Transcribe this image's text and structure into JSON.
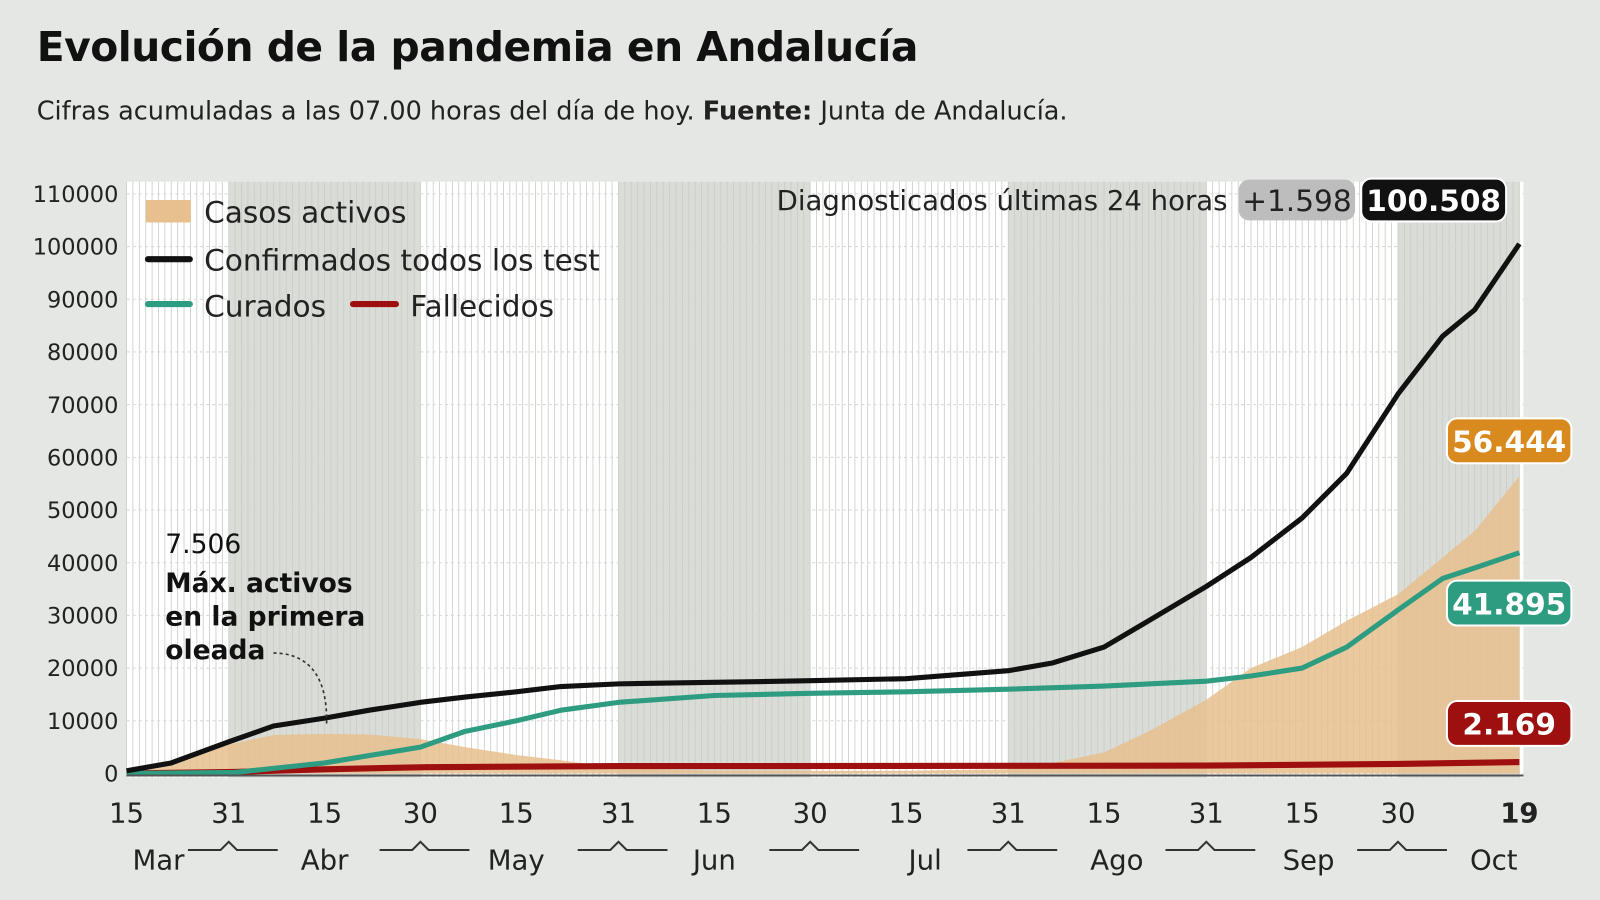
{
  "title": "Evolución de la pandemia en Andalucía",
  "subtitle": {
    "text": "Cifras acumuladas a las 07.00 horas del día de hoy.",
    "source_label": "Fuente:",
    "source": "Junta de Andalucía."
  },
  "header_box": {
    "label": "Diagnosticados últimas 24 horas",
    "delta": "+1.598",
    "total": "100.508"
  },
  "annotation": {
    "value": "7.506",
    "lines": [
      "Máx. activos",
      "en la primera",
      "oleada"
    ]
  },
  "end_labels": {
    "activos": "56.444",
    "curados": "41.895",
    "fallecidos": "2.169"
  },
  "colors": {
    "activos": "#e8c08e",
    "confirmados": "#111111",
    "curados": "#2e9c80",
    "fallecidos": "#9e0f0f",
    "activos_badge": "#d98a1f",
    "background": "#e4e7e3"
  },
  "chart_data": {
    "type": "line",
    "xlim": [
      "2020-03-15",
      "2020-10-19"
    ],
    "ylim": [
      0,
      110000
    ],
    "grid": true,
    "legend": "top-left",
    "y_ticks": [
      "0",
      "10000",
      "20000",
      "30000",
      "40000",
      "50000",
      "60000",
      "70000",
      "80000",
      "90000",
      "100000",
      "110000"
    ],
    "x_ticks": [
      {
        "date": "2020-03-15",
        "label": "15"
      },
      {
        "date": "2020-03-31",
        "label": "31"
      },
      {
        "date": "2020-04-15",
        "label": "15"
      },
      {
        "date": "2020-04-30",
        "label": "30"
      },
      {
        "date": "2020-05-15",
        "label": "15"
      },
      {
        "date": "2020-05-31",
        "label": "31"
      },
      {
        "date": "2020-06-15",
        "label": "15"
      },
      {
        "date": "2020-06-30",
        "label": "30"
      },
      {
        "date": "2020-07-15",
        "label": "15"
      },
      {
        "date": "2020-07-31",
        "label": "31"
      },
      {
        "date": "2020-08-15",
        "label": "15"
      },
      {
        "date": "2020-08-31",
        "label": "31"
      },
      {
        "date": "2020-09-15",
        "label": "15"
      },
      {
        "date": "2020-09-30",
        "label": "30"
      },
      {
        "date": "2020-10-19",
        "label": "19"
      }
    ],
    "months": [
      {
        "date": "2020-03-20",
        "label": "Mar"
      },
      {
        "date": "2020-04-15",
        "label": "Abr"
      },
      {
        "date": "2020-05-15",
        "label": "May"
      },
      {
        "date": "2020-06-15",
        "label": "Jun"
      },
      {
        "date": "2020-07-18",
        "label": "Jul"
      },
      {
        "date": "2020-08-17",
        "label": "Ago"
      },
      {
        "date": "2020-09-16",
        "label": "Sep"
      },
      {
        "date": "2020-10-15",
        "label": "Oct"
      }
    ],
    "series": [
      {
        "name": "Casos activos",
        "type": "area",
        "points": [
          [
            "2020-03-15",
            0
          ],
          [
            "2020-03-22",
            1500
          ],
          [
            "2020-03-31",
            5500
          ],
          [
            "2020-04-07",
            7300
          ],
          [
            "2020-04-15",
            7506
          ],
          [
            "2020-04-22",
            7400
          ],
          [
            "2020-04-30",
            6500
          ],
          [
            "2020-05-07",
            5000
          ],
          [
            "2020-05-15",
            3500
          ],
          [
            "2020-05-22",
            2500
          ],
          [
            "2020-05-31",
            1000
          ],
          [
            "2020-06-15",
            500
          ],
          [
            "2020-07-15",
            500
          ],
          [
            "2020-07-31",
            800
          ],
          [
            "2020-08-07",
            2000
          ],
          [
            "2020-08-15",
            4000
          ],
          [
            "2020-08-22",
            8000
          ],
          [
            "2020-08-31",
            14000
          ],
          [
            "2020-09-07",
            20000
          ],
          [
            "2020-09-15",
            24000
          ],
          [
            "2020-09-22",
            29000
          ],
          [
            "2020-09-30",
            34000
          ],
          [
            "2020-10-07",
            41000
          ],
          [
            "2020-10-12",
            46000
          ],
          [
            "2020-10-19",
            56444
          ]
        ]
      },
      {
        "name": "Confirmados todos los test",
        "type": "line",
        "points": [
          [
            "2020-03-15",
            500
          ],
          [
            "2020-03-22",
            2000
          ],
          [
            "2020-03-31",
            6000
          ],
          [
            "2020-04-07",
            9000
          ],
          [
            "2020-04-15",
            10500
          ],
          [
            "2020-04-22",
            12000
          ],
          [
            "2020-04-30",
            13500
          ],
          [
            "2020-05-07",
            14500
          ],
          [
            "2020-05-15",
            15500
          ],
          [
            "2020-05-22",
            16500
          ],
          [
            "2020-05-31",
            17000
          ],
          [
            "2020-06-15",
            17300
          ],
          [
            "2020-06-30",
            17600
          ],
          [
            "2020-07-15",
            18000
          ],
          [
            "2020-07-31",
            19500
          ],
          [
            "2020-08-07",
            21000
          ],
          [
            "2020-08-15",
            24000
          ],
          [
            "2020-08-22",
            29000
          ],
          [
            "2020-08-31",
            35500
          ],
          [
            "2020-09-07",
            41000
          ],
          [
            "2020-09-15",
            48500
          ],
          [
            "2020-09-22",
            57000
          ],
          [
            "2020-09-30",
            72000
          ],
          [
            "2020-10-07",
            83000
          ],
          [
            "2020-10-12",
            88000
          ],
          [
            "2020-10-19",
            100508
          ]
        ]
      },
      {
        "name": "Curados",
        "type": "line",
        "points": [
          [
            "2020-03-15",
            0
          ],
          [
            "2020-04-01",
            200
          ],
          [
            "2020-04-15",
            2000
          ],
          [
            "2020-04-30",
            5000
          ],
          [
            "2020-05-07",
            8000
          ],
          [
            "2020-05-15",
            10000
          ],
          [
            "2020-05-22",
            12000
          ],
          [
            "2020-05-31",
            13500
          ],
          [
            "2020-06-15",
            14800
          ],
          [
            "2020-06-30",
            15200
          ],
          [
            "2020-07-15",
            15500
          ],
          [
            "2020-07-31",
            16000
          ],
          [
            "2020-08-15",
            16600
          ],
          [
            "2020-08-31",
            17500
          ],
          [
            "2020-09-07",
            18500
          ],
          [
            "2020-09-15",
            20000
          ],
          [
            "2020-09-22",
            24000
          ],
          [
            "2020-09-30",
            31000
          ],
          [
            "2020-10-07",
            37000
          ],
          [
            "2020-10-12",
            39000
          ],
          [
            "2020-10-19",
            41895
          ]
        ]
      },
      {
        "name": "Fallecidos",
        "type": "line",
        "points": [
          [
            "2020-03-15",
            0
          ],
          [
            "2020-04-01",
            300
          ],
          [
            "2020-04-15",
            800
          ],
          [
            "2020-05-01",
            1200
          ],
          [
            "2020-05-31",
            1400
          ],
          [
            "2020-07-31",
            1450
          ],
          [
            "2020-08-31",
            1500
          ],
          [
            "2020-09-30",
            1800
          ],
          [
            "2020-10-19",
            2169
          ]
        ]
      }
    ]
  }
}
